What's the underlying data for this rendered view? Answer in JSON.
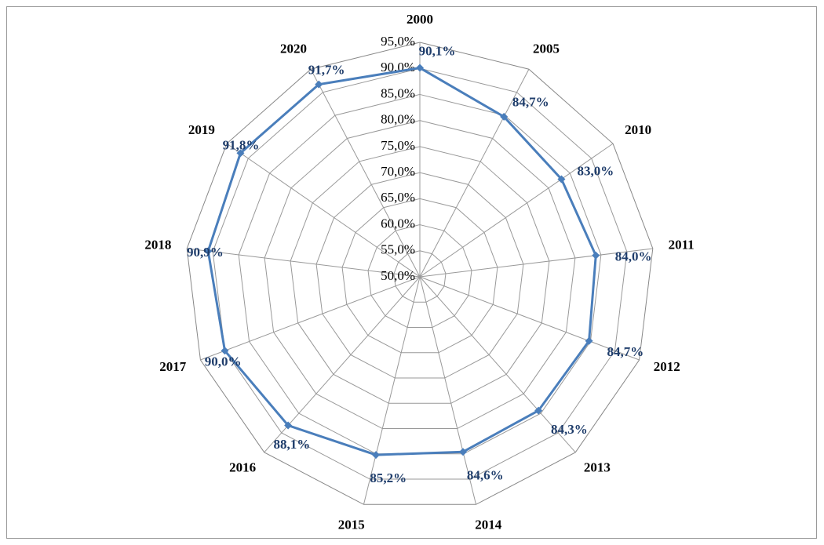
{
  "chart_data": {
    "type": "radar",
    "categories": [
      "2000",
      "2005",
      "2010",
      "2011",
      "2012",
      "2013",
      "2014",
      "2015",
      "2016",
      "2017",
      "2018",
      "2019",
      "2020"
    ],
    "values": [
      90.1,
      84.7,
      83.0,
      84.0,
      84.7,
      84.3,
      84.6,
      85.2,
      88.1,
      90.0,
      90.9,
      91.8,
      91.7
    ],
    "value_labels": [
      "90,1%",
      "84,7%",
      "83,0%",
      "84,0%",
      "84,7%",
      "84,3%",
      "84,6%",
      "85,2%",
      "88,1%",
      "90,0%",
      "90,9%",
      "91,8%",
      "91,7%"
    ],
    "color": "#4a7ebb",
    "ylim": [
      50,
      95
    ],
    "yticks": [
      {
        "value": 50,
        "label": "50,0%"
      },
      {
        "value": 55,
        "label": "55,0%"
      },
      {
        "value": 60,
        "label": "60,0%"
      },
      {
        "value": 65,
        "label": "65,0%"
      },
      {
        "value": 70,
        "label": "70,0%"
      },
      {
        "value": 75,
        "label": "75,0%"
      },
      {
        "value": 80,
        "label": "80,0%"
      },
      {
        "value": 85,
        "label": "85,0%"
      },
      {
        "value": 90,
        "label": "90,0%"
      },
      {
        "value": 95,
        "label": "95,0%"
      }
    ],
    "grid": true
  }
}
